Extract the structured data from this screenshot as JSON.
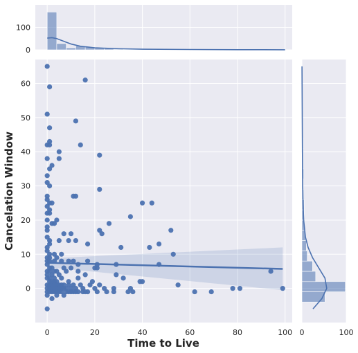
{
  "colors": {
    "panel_bg": "#eaeaf2",
    "grid": "#ffffff",
    "points": "#4c72b0",
    "regression_line": "#4c72b0",
    "ci_band": "#4c72b0",
    "hist_bar": "#4c72b0",
    "kde": "#4c72b0"
  },
  "chart_data": {
    "type": "scatter",
    "xlabel": "Time to Live",
    "ylabel": "Cancelation Window",
    "xlim": [
      -5,
      103
    ],
    "ylim": [
      -10,
      67
    ],
    "x_ticks": [
      0,
      20,
      40,
      60,
      80,
      100
    ],
    "y_ticks": [
      0,
      10,
      20,
      30,
      40,
      50,
      60
    ],
    "grid": true,
    "regression": {
      "x": [
        0,
        99
      ],
      "y": [
        7.5,
        5.7
      ],
      "ci_lower": [
        6.2,
        -0.5
      ],
      "ci_upper": [
        8.8,
        12.0
      ]
    },
    "points": [
      [
        0,
        65
      ],
      [
        1,
        59
      ],
      [
        16,
        61
      ],
      [
        0,
        51
      ],
      [
        12,
        49
      ],
      [
        1,
        47
      ],
      [
        1,
        43
      ],
      [
        0,
        42
      ],
      [
        1,
        42
      ],
      [
        14,
        42
      ],
      [
        5,
        40
      ],
      [
        22,
        39
      ],
      [
        0,
        38
      ],
      [
        5,
        38
      ],
      [
        2,
        36
      ],
      [
        1,
        35
      ],
      [
        0,
        33
      ],
      [
        0,
        31
      ],
      [
        1,
        30
      ],
      [
        22,
        29
      ],
      [
        0,
        27
      ],
      [
        11,
        27
      ],
      [
        12,
        27
      ],
      [
        0,
        26
      ],
      [
        1,
        25
      ],
      [
        2,
        25
      ],
      [
        40,
        25
      ],
      [
        44,
        25
      ],
      [
        0,
        24
      ],
      [
        1,
        23
      ],
      [
        0,
        22
      ],
      [
        1,
        22
      ],
      [
        0,
        20
      ],
      [
        4,
        20
      ],
      [
        35,
        21
      ],
      [
        2,
        19
      ],
      [
        3,
        19
      ],
      [
        26,
        19
      ],
      [
        0,
        18
      ],
      [
        0,
        17
      ],
      [
        22,
        17
      ],
      [
        52,
        17
      ],
      [
        7,
        16
      ],
      [
        10,
        16
      ],
      [
        23,
        16
      ],
      [
        0,
        15
      ],
      [
        1,
        14
      ],
      [
        5,
        14
      ],
      [
        9,
        14
      ],
      [
        12,
        14
      ],
      [
        1,
        13
      ],
      [
        0,
        12
      ],
      [
        17,
        13
      ],
      [
        31,
        12
      ],
      [
        43,
        12
      ],
      [
        47,
        13
      ],
      [
        53,
        10
      ],
      [
        0,
        11
      ],
      [
        1,
        10
      ],
      [
        3,
        10
      ],
      [
        6,
        10
      ],
      [
        0,
        9
      ],
      [
        1,
        9
      ],
      [
        4,
        9
      ],
      [
        0,
        8
      ],
      [
        1,
        8
      ],
      [
        3,
        8
      ],
      [
        6,
        8
      ],
      [
        9,
        8
      ],
      [
        11,
        8
      ],
      [
        13,
        7
      ],
      [
        17,
        8
      ],
      [
        21,
        7
      ],
      [
        29,
        7
      ],
      [
        47,
        7
      ],
      [
        0,
        7
      ],
      [
        1,
        6
      ],
      [
        2,
        6
      ],
      [
        3,
        5
      ],
      [
        4,
        5
      ],
      [
        7,
        6
      ],
      [
        10,
        6
      ],
      [
        20,
        6
      ],
      [
        21,
        6
      ],
      [
        0,
        5
      ],
      [
        1,
        5
      ],
      [
        2,
        4
      ],
      [
        5,
        4
      ],
      [
        8,
        5
      ],
      [
        13,
        5
      ],
      [
        16,
        4
      ],
      [
        29,
        4
      ],
      [
        32,
        3
      ],
      [
        0,
        4
      ],
      [
        1,
        3
      ],
      [
        3,
        3
      ],
      [
        6,
        3
      ],
      [
        9,
        2
      ],
      [
        13,
        3
      ],
      [
        19,
        2
      ],
      [
        39,
        2
      ],
      [
        40,
        2
      ],
      [
        0,
        3
      ],
      [
        1,
        2
      ],
      [
        2,
        2
      ],
      [
        3,
        2
      ],
      [
        4,
        2
      ],
      [
        5,
        1
      ],
      [
        6,
        1
      ],
      [
        7,
        1
      ],
      [
        9,
        1
      ],
      [
        11,
        1
      ],
      [
        14,
        1
      ],
      [
        18,
        1
      ],
      [
        22,
        1
      ],
      [
        55,
        1
      ],
      [
        0,
        1
      ],
      [
        1,
        1
      ],
      [
        2,
        1
      ],
      [
        3,
        1
      ],
      [
        4,
        1
      ],
      [
        6,
        0
      ],
      [
        8,
        0
      ],
      [
        10,
        0
      ],
      [
        12,
        0
      ],
      [
        15,
        0
      ],
      [
        20,
        0
      ],
      [
        24,
        0
      ],
      [
        28,
        0
      ],
      [
        35,
        0
      ],
      [
        78,
        0
      ],
      [
        81,
        0
      ],
      [
        99,
        0
      ],
      [
        0,
        0
      ],
      [
        1,
        0
      ],
      [
        2,
        0
      ],
      [
        3,
        0
      ],
      [
        4,
        0
      ],
      [
        5,
        0
      ],
      [
        7,
        0
      ],
      [
        9,
        -1
      ],
      [
        11,
        -1
      ],
      [
        13,
        -1
      ],
      [
        15,
        -1
      ],
      [
        17,
        -1
      ],
      [
        21,
        -1
      ],
      [
        25,
        -1
      ],
      [
        28,
        -1
      ],
      [
        34,
        -1
      ],
      [
        36,
        -1
      ],
      [
        62,
        -1
      ],
      [
        69,
        -1
      ],
      [
        0,
        -1
      ],
      [
        1,
        -1
      ],
      [
        2,
        -1
      ],
      [
        3,
        -1
      ],
      [
        4,
        -1
      ],
      [
        5,
        -1
      ],
      [
        6,
        -1
      ],
      [
        8,
        -1
      ],
      [
        10,
        -1
      ],
      [
        12,
        -1
      ],
      [
        16,
        -1
      ],
      [
        0,
        -2
      ],
      [
        4,
        -2
      ],
      [
        7,
        -2
      ],
      [
        2,
        -3
      ],
      [
        0,
        -6
      ],
      [
        94,
        5
      ]
    ],
    "x_hist": {
      "bin_edges": [
        0,
        4,
        8,
        12,
        16,
        20,
        24,
        28,
        32,
        36,
        40,
        44,
        48,
        52,
        56,
        60,
        64,
        68,
        72,
        76,
        80,
        84,
        88,
        92,
        96,
        100
      ],
      "counts": [
        168,
        28,
        9,
        18,
        12,
        10,
        6,
        3,
        2,
        2,
        3,
        2,
        2,
        1,
        1,
        0,
        1,
        0,
        0,
        0,
        1,
        0,
        0,
        1,
        1
      ],
      "ticks": [
        0,
        100
      ],
      "kde_x": [
        0,
        2,
        4,
        6,
        8,
        10,
        14,
        20,
        30,
        40,
        60,
        80,
        100
      ],
      "kde_y": [
        52,
        54,
        50,
        42,
        34,
        26,
        16,
        9,
        5,
        3,
        1.5,
        0.7,
        0.3
      ]
    },
    "y_hist": {
      "bin_edges": [
        -4,
        -1,
        2,
        5,
        8,
        11,
        14,
        17,
        20,
        23,
        26,
        29,
        32,
        35,
        38,
        41,
        44,
        47,
        50,
        53,
        56,
        59,
        62,
        65
      ],
      "counts": [
        52,
        98,
        31,
        24,
        12,
        10,
        8,
        6,
        5,
        5,
        4,
        3,
        4,
        3,
        3,
        3,
        1,
        1,
        1,
        0,
        0,
        1,
        1
      ],
      "ticks": [
        0,
        100
      ],
      "kde_y": [
        -6,
        -3,
        0,
        3,
        6,
        9,
        12,
        15,
        20,
        25,
        30,
        40,
        50,
        60,
        65
      ],
      "kde_x": [
        25,
        45,
        56,
        52,
        38,
        24,
        14,
        8,
        4,
        2.5,
        1.8,
        1.2,
        0.8,
        0.4,
        0.2
      ]
    }
  }
}
